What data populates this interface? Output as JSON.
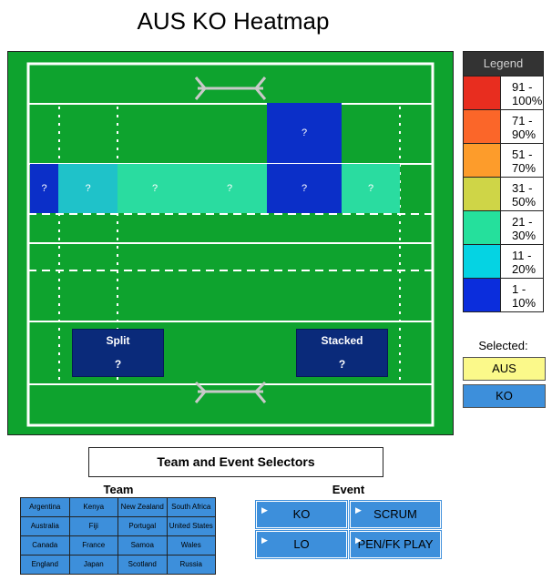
{
  "title": "AUS KO Heatmap",
  "field": {
    "cells": [
      {
        "label": "?",
        "color": "#0b2fc8"
      },
      {
        "label": "?",
        "color": "#1fc2c9"
      },
      {
        "label": "?",
        "color": "#2adca0"
      },
      {
        "label": "?",
        "color": "#2adca0"
      },
      {
        "label": "?",
        "color": "#0b2fc8"
      },
      {
        "label": "?",
        "color": "#2adca0"
      },
      {
        "label": "?",
        "color": "#0b2fc8"
      }
    ],
    "zones": [
      {
        "name": "Split",
        "value": "?"
      },
      {
        "name": "Stacked",
        "value": "?"
      }
    ]
  },
  "legend": {
    "title": "Legend",
    "items": [
      {
        "label": "91 - 100%",
        "color": "#e82d1f"
      },
      {
        "label": "71 - 90%",
        "color": "#fb6629"
      },
      {
        "label": "51 - 70%",
        "color": "#fd9c2b"
      },
      {
        "label": "31 - 50%",
        "color": "#cfd547"
      },
      {
        "label": "21 - 30%",
        "color": "#25e09c"
      },
      {
        "label": "11 - 20%",
        "color": "#05d3e3"
      },
      {
        "label": "1 - 10%",
        "color": "#0b2ddc"
      }
    ]
  },
  "selected": {
    "label": "Selected:",
    "team": "AUS",
    "event": "KO",
    "team_color": "#fbf98a",
    "event_color": "#3d8fdb"
  },
  "selectors": {
    "title": "Team and Event Selectors",
    "team_heading": "Team",
    "event_heading": "Event",
    "teams": [
      "Argentina",
      "Kenya",
      "New Zealand",
      "South Africa",
      "Australia",
      "Fiji",
      "Portugal",
      "United States",
      "Canada",
      "France",
      "Samoa",
      "Wales",
      "England",
      "Japan",
      "Scotland",
      "Russia"
    ],
    "events": [
      "KO",
      "SCRUM",
      "LO",
      "PEN/FK PLAY"
    ]
  }
}
